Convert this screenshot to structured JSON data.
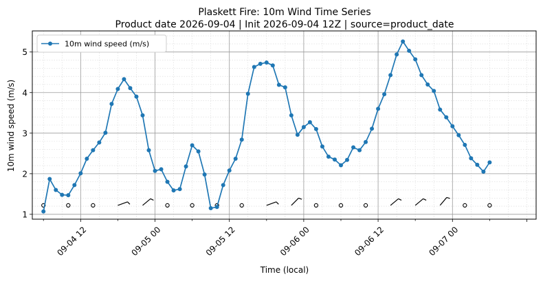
{
  "chart_data": {
    "type": "line",
    "title": "Plaskett Fire: 10m Wind Time Series",
    "subtitle": "Product date 2026-09-04 | Init 2026-09-04 12Z | source=product_date",
    "xlabel": "Time (local)",
    "ylabel": "10m wind speed (m/s)",
    "legend": "top-left",
    "grid": true,
    "x_major_ticks": [
      {
        "label": "09-04 12",
        "hours": 12
      },
      {
        "label": "09-05 00",
        "hours": 24
      },
      {
        "label": "09-05 12",
        "hours": 36
      },
      {
        "label": "09-06 00",
        "hours": 48
      },
      {
        "label": "09-06 12",
        "hours": 60
      },
      {
        "label": "09-07 00",
        "hours": 72
      }
    ],
    "y_ticks": [
      {
        "label": "1",
        "value": 1
      },
      {
        "label": "2",
        "value": 2
      },
      {
        "label": "3",
        "value": 3
      },
      {
        "label": "4",
        "value": 4
      },
      {
        "label": "5",
        "value": 5
      }
    ],
    "xlim_hours": [
      4.2,
      85.5
    ],
    "ylim": [
      0.88,
      5.52
    ],
    "color": "#1f77b4",
    "series": [
      {
        "name": "10m wind speed (m/s)",
        "start_hours": 6,
        "step_hours": 1,
        "values": [
          1.07,
          1.87,
          1.6,
          1.48,
          1.47,
          1.72,
          2.01,
          2.37,
          2.58,
          2.77,
          3.01,
          3.72,
          4.09,
          4.33,
          4.11,
          3.9,
          3.44,
          2.58,
          2.07,
          2.11,
          1.8,
          1.59,
          1.62,
          2.18,
          2.7,
          2.55,
          1.98,
          1.15,
          1.18,
          1.72,
          2.08,
          2.37,
          2.84,
          3.97,
          4.63,
          4.71,
          4.74,
          4.67,
          4.19,
          4.13,
          3.44,
          2.96,
          3.15,
          3.27,
          3.1,
          2.67,
          2.42,
          2.35,
          2.21,
          2.34,
          2.65,
          2.58,
          2.78,
          3.11,
          3.6,
          3.96,
          4.43,
          4.94,
          5.26,
          5.03,
          4.82,
          4.43,
          4.2,
          4.04,
          3.58,
          3.39,
          3.17,
          2.95,
          2.71,
          2.38,
          2.22,
          2.05,
          2.28
        ]
      }
    ],
    "wind_barbs": {
      "y_value": 1.22,
      "items": [
        {
          "hours": 6,
          "type": "calm"
        },
        {
          "hours": 10,
          "type": "calm"
        },
        {
          "hours": 14,
          "type": "calm"
        },
        {
          "hours": 18,
          "type": "barb",
          "angle": 70
        },
        {
          "hours": 22,
          "type": "barb",
          "angle": 50
        },
        {
          "hours": 26,
          "type": "calm"
        },
        {
          "hours": 30,
          "type": "calm"
        },
        {
          "hours": 34,
          "type": "calm"
        },
        {
          "hours": 38,
          "type": "calm"
        },
        {
          "hours": 42,
          "type": "barb",
          "angle": 70
        },
        {
          "hours": 46,
          "type": "barb",
          "angle": 45
        },
        {
          "hours": 50,
          "type": "calm"
        },
        {
          "hours": 54,
          "type": "calm"
        },
        {
          "hours": 58,
          "type": "calm"
        },
        {
          "hours": 62,
          "type": "barb",
          "angle": 50
        },
        {
          "hours": 66,
          "type": "barb",
          "angle": 50
        },
        {
          "hours": 70,
          "type": "barb",
          "angle": 40
        },
        {
          "hours": 74,
          "type": "calm"
        },
        {
          "hours": 78,
          "type": "calm"
        }
      ]
    }
  }
}
